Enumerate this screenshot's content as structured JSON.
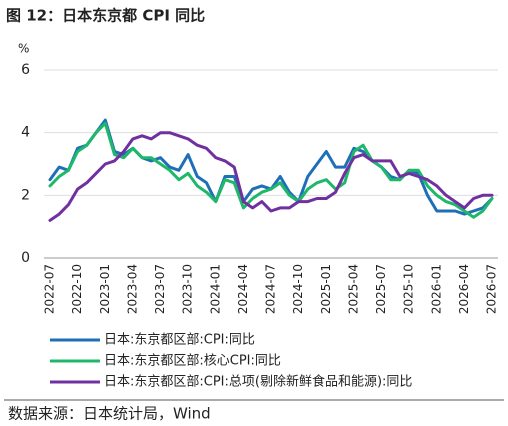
{
  "chart_data": {
    "type": "line",
    "title": "图 12：日本东京都 CPI 同比",
    "y_label": "%",
    "source": "数据来源：日本统计局，Wind",
    "categories": [
      "2022-07",
      null,
      null,
      "2022-10",
      null,
      null,
      "2023-01",
      null,
      null,
      "2023-04",
      null,
      null,
      "2023-07",
      null,
      null,
      "2023-10",
      null,
      null,
      "2024-01",
      null,
      null,
      "2024-04",
      null,
      null,
      "2024-07",
      null,
      null,
      "2024-10",
      null,
      null,
      "2025-01",
      null,
      null,
      "2025-04",
      null,
      null,
      "2025-07",
      null,
      null,
      "2025-10",
      null,
      null,
      "2026-01",
      null,
      null,
      "2026-04",
      null,
      null,
      "2026-07"
    ],
    "series": [
      {
        "name": "日本:东京都区部:CPI:同比",
        "color": "#1f6fb8",
        "values": [
          2.5,
          2.9,
          2.8,
          3.5,
          3.6,
          4.0,
          4.4,
          3.4,
          3.3,
          3.5,
          3.2,
          3.1,
          3.2,
          2.9,
          2.8,
          3.3,
          2.6,
          2.4,
          1.8,
          2.6,
          2.6,
          1.8,
          2.2,
          2.3,
          2.2,
          2.6,
          2.1,
          1.8,
          2.6,
          3.0,
          3.4,
          2.9,
          2.9,
          3.5,
          3.4,
          3.1,
          2.9,
          2.6,
          2.5,
          2.8,
          2.7,
          2.0,
          1.5,
          1.5,
          1.5,
          1.4,
          1.5,
          1.6,
          1.9
        ]
      },
      {
        "name": "日本:东京都区部:核心CPI:同比",
        "color": "#1fb86b",
        "values": [
          2.3,
          2.6,
          2.8,
          3.4,
          3.6,
          4.0,
          4.3,
          3.3,
          3.2,
          3.5,
          3.2,
          3.2,
          3.0,
          2.8,
          2.5,
          2.7,
          2.3,
          2.1,
          1.8,
          2.5,
          2.4,
          1.6,
          1.9,
          2.1,
          2.2,
          2.4,
          2.0,
          1.8,
          2.2,
          2.4,
          2.5,
          2.2,
          2.4,
          3.4,
          3.6,
          3.1,
          2.9,
          2.5,
          2.5,
          2.8,
          2.8,
          2.3,
          2.0,
          1.8,
          1.7,
          1.5,
          1.3,
          1.5,
          1.9
        ]
      },
      {
        "name": "日本:东京都区部:CPI:总项(剔除新鲜食品和能源):同比",
        "color": "#7030a0",
        "values": [
          1.2,
          1.4,
          1.7,
          2.2,
          2.4,
          2.7,
          3.0,
          3.1,
          3.4,
          3.8,
          3.9,
          3.8,
          4.0,
          4.0,
          3.9,
          3.8,
          3.6,
          3.5,
          3.2,
          3.1,
          2.9,
          1.8,
          1.6,
          1.8,
          1.5,
          1.6,
          1.6,
          1.8,
          1.8,
          1.9,
          1.9,
          2.1,
          2.7,
          3.2,
          3.3,
          3.1,
          3.1,
          3.1,
          2.6,
          2.7,
          2.6,
          2.5,
          2.3,
          2.0,
          1.8,
          1.6,
          1.9,
          2.0,
          2.0
        ]
      }
    ],
    "ylim": [
      0,
      6
    ],
    "yticks": [
      0,
      2,
      4,
      6
    ],
    "grid": true
  }
}
